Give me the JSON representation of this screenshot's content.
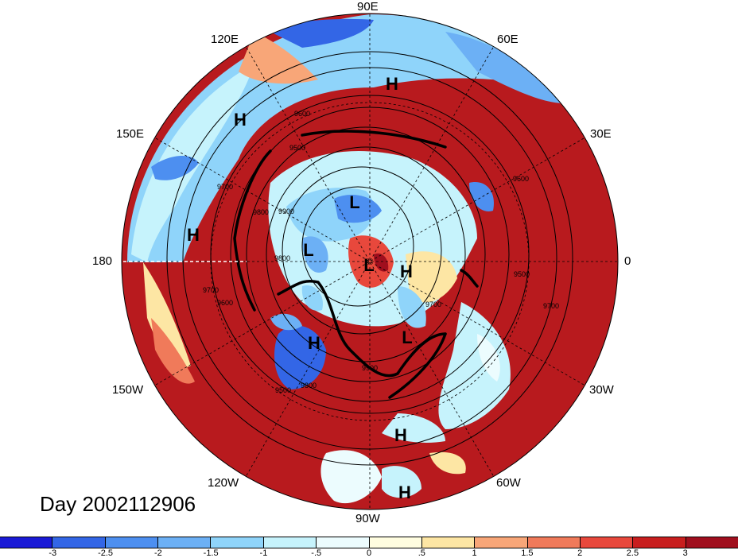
{
  "title": "Day 2002112906",
  "longitude_labels": {
    "lon_90e": "90E",
    "lon_60e": "60E",
    "lon_30e": "30E",
    "lon_0": "0",
    "lon_30w": "30W",
    "lon_60w": "60W",
    "lon_90w": "90W",
    "lon_120w": "120W",
    "lon_150w": "150W",
    "lon_180": "180",
    "lon_150e": "150E",
    "lon_120e": "120E"
  },
  "pressure_systems": [
    {
      "label": "H",
      "kind": "high"
    },
    {
      "label": "H",
      "kind": "high"
    },
    {
      "label": "H",
      "kind": "high"
    },
    {
      "label": "L",
      "kind": "low"
    },
    {
      "label": "L",
      "kind": "low"
    },
    {
      "label": "L",
      "kind": "low"
    },
    {
      "label": "H",
      "kind": "high"
    },
    {
      "label": "H",
      "kind": "high"
    },
    {
      "label": "L",
      "kind": "low"
    },
    {
      "label": "H",
      "kind": "high"
    },
    {
      "label": "H",
      "kind": "high"
    }
  ],
  "contour_labels": [
    "9600",
    "9500",
    "9700",
    "9800",
    "9900",
    "9600",
    "9700",
    "9800",
    "9900",
    "9700",
    "9500",
    "9600",
    "9800",
    "9500",
    "9700"
  ],
  "colorbar": {
    "colors": [
      "#1a1ad6",
      "#3366e6",
      "#4d8ff0",
      "#6cb0f5",
      "#8fd4fa",
      "#c6f3fc",
      "#ecfcfe",
      "#fffde0",
      "#fde6a4",
      "#f8a678",
      "#f07a5a",
      "#e8483c",
      "#c81e1e",
      "#a00f1e"
    ],
    "tick_labels": [
      "-3",
      "-2.5",
      "-2",
      "-1.5",
      "-1",
      "-.5",
      "0",
      ".5",
      "1",
      "1.5",
      "2",
      "2.5",
      "3"
    ]
  }
}
